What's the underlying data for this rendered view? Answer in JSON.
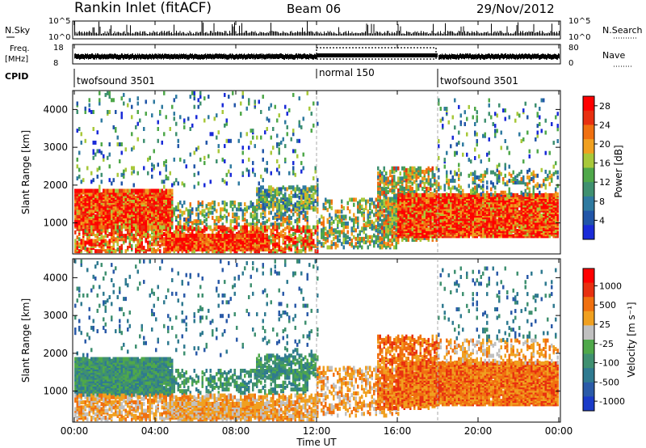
{
  "header": {
    "station": "Rankin Inlet (fitACF)",
    "beam": "Beam 06",
    "date": "29/Nov/2012"
  },
  "status_panels": {
    "nsky_label": "N.Sky",
    "nsky_ticks": [
      "10^5",
      "10^0"
    ],
    "nsearch_label": "N.Search",
    "nsearch_ticks": [
      "10^5",
      "10^0"
    ],
    "freq_label_1": "Freq.",
    "freq_label_2": "[MHz]",
    "freq_ticks": [
      "18",
      "8"
    ],
    "nave_label": "Nave",
    "nave_ticks": [
      "80",
      "0"
    ],
    "cpid_label": "CPID",
    "cpid_segments": [
      {
        "label": "twofsound 3501",
        "start_hour": 0,
        "end_hour": 12
      },
      {
        "label": "normal 150",
        "start_hour": 12,
        "end_hour": 18
      },
      {
        "label": "twofsound 3501",
        "start_hour": 18,
        "end_hour": 24
      }
    ]
  },
  "colors": {
    "power_scale": [
      "#1a2bd8",
      "#2155a8",
      "#2f7aa0",
      "#3f9070",
      "#4fa84a",
      "#a8c83a",
      "#f0a020",
      "#f07010",
      "#e83010",
      "#ff0000"
    ],
    "velocity_scale": [
      "#1a3bc8",
      "#2a5aa8",
      "#2f7a90",
      "#3f9070",
      "#4fa84a",
      "#c0c0c0",
      "#f0a020",
      "#f07010",
      "#e83010",
      "#ff0000"
    ]
  },
  "chart_data": [
    {
      "type": "heatmap",
      "name": "power",
      "ylabel": "Slant Range [km]",
      "xlabel": "Time UT",
      "x_ticks": [
        "00:00",
        "04:00",
        "08:00",
        "12:00",
        "16:00",
        "20:00",
        "00:00"
      ],
      "x_range_hours": [
        0,
        24
      ],
      "y_ticks": [
        1000,
        2000,
        3000,
        4000
      ],
      "y_range_km": [
        180,
        4500
      ],
      "colorbar_label": "Power [dB]",
      "colorbar_ticks": [
        4,
        8,
        12,
        16,
        20,
        24,
        28
      ],
      "colorbar_range": [
        0,
        30
      ],
      "vertical_markers_hours": [
        12,
        18
      ]
    },
    {
      "type": "heatmap",
      "name": "velocity",
      "ylabel": "Slant Range [km]",
      "xlabel": "Time UT",
      "x_ticks": [
        "00:00",
        "04:00",
        "08:00",
        "12:00",
        "16:00",
        "20:00",
        "00:00"
      ],
      "x_range_hours": [
        0,
        24
      ],
      "y_ticks": [
        1000,
        2000,
        3000,
        4000
      ],
      "y_range_km": [
        180,
        4500
      ],
      "colorbar_label": "Velocity [m s⁻¹]",
      "colorbar_ticks": [
        1000,
        500,
        25,
        -25,
        -100,
        -500,
        -1000
      ],
      "vertical_markers_hours": [
        12,
        18
      ]
    }
  ]
}
